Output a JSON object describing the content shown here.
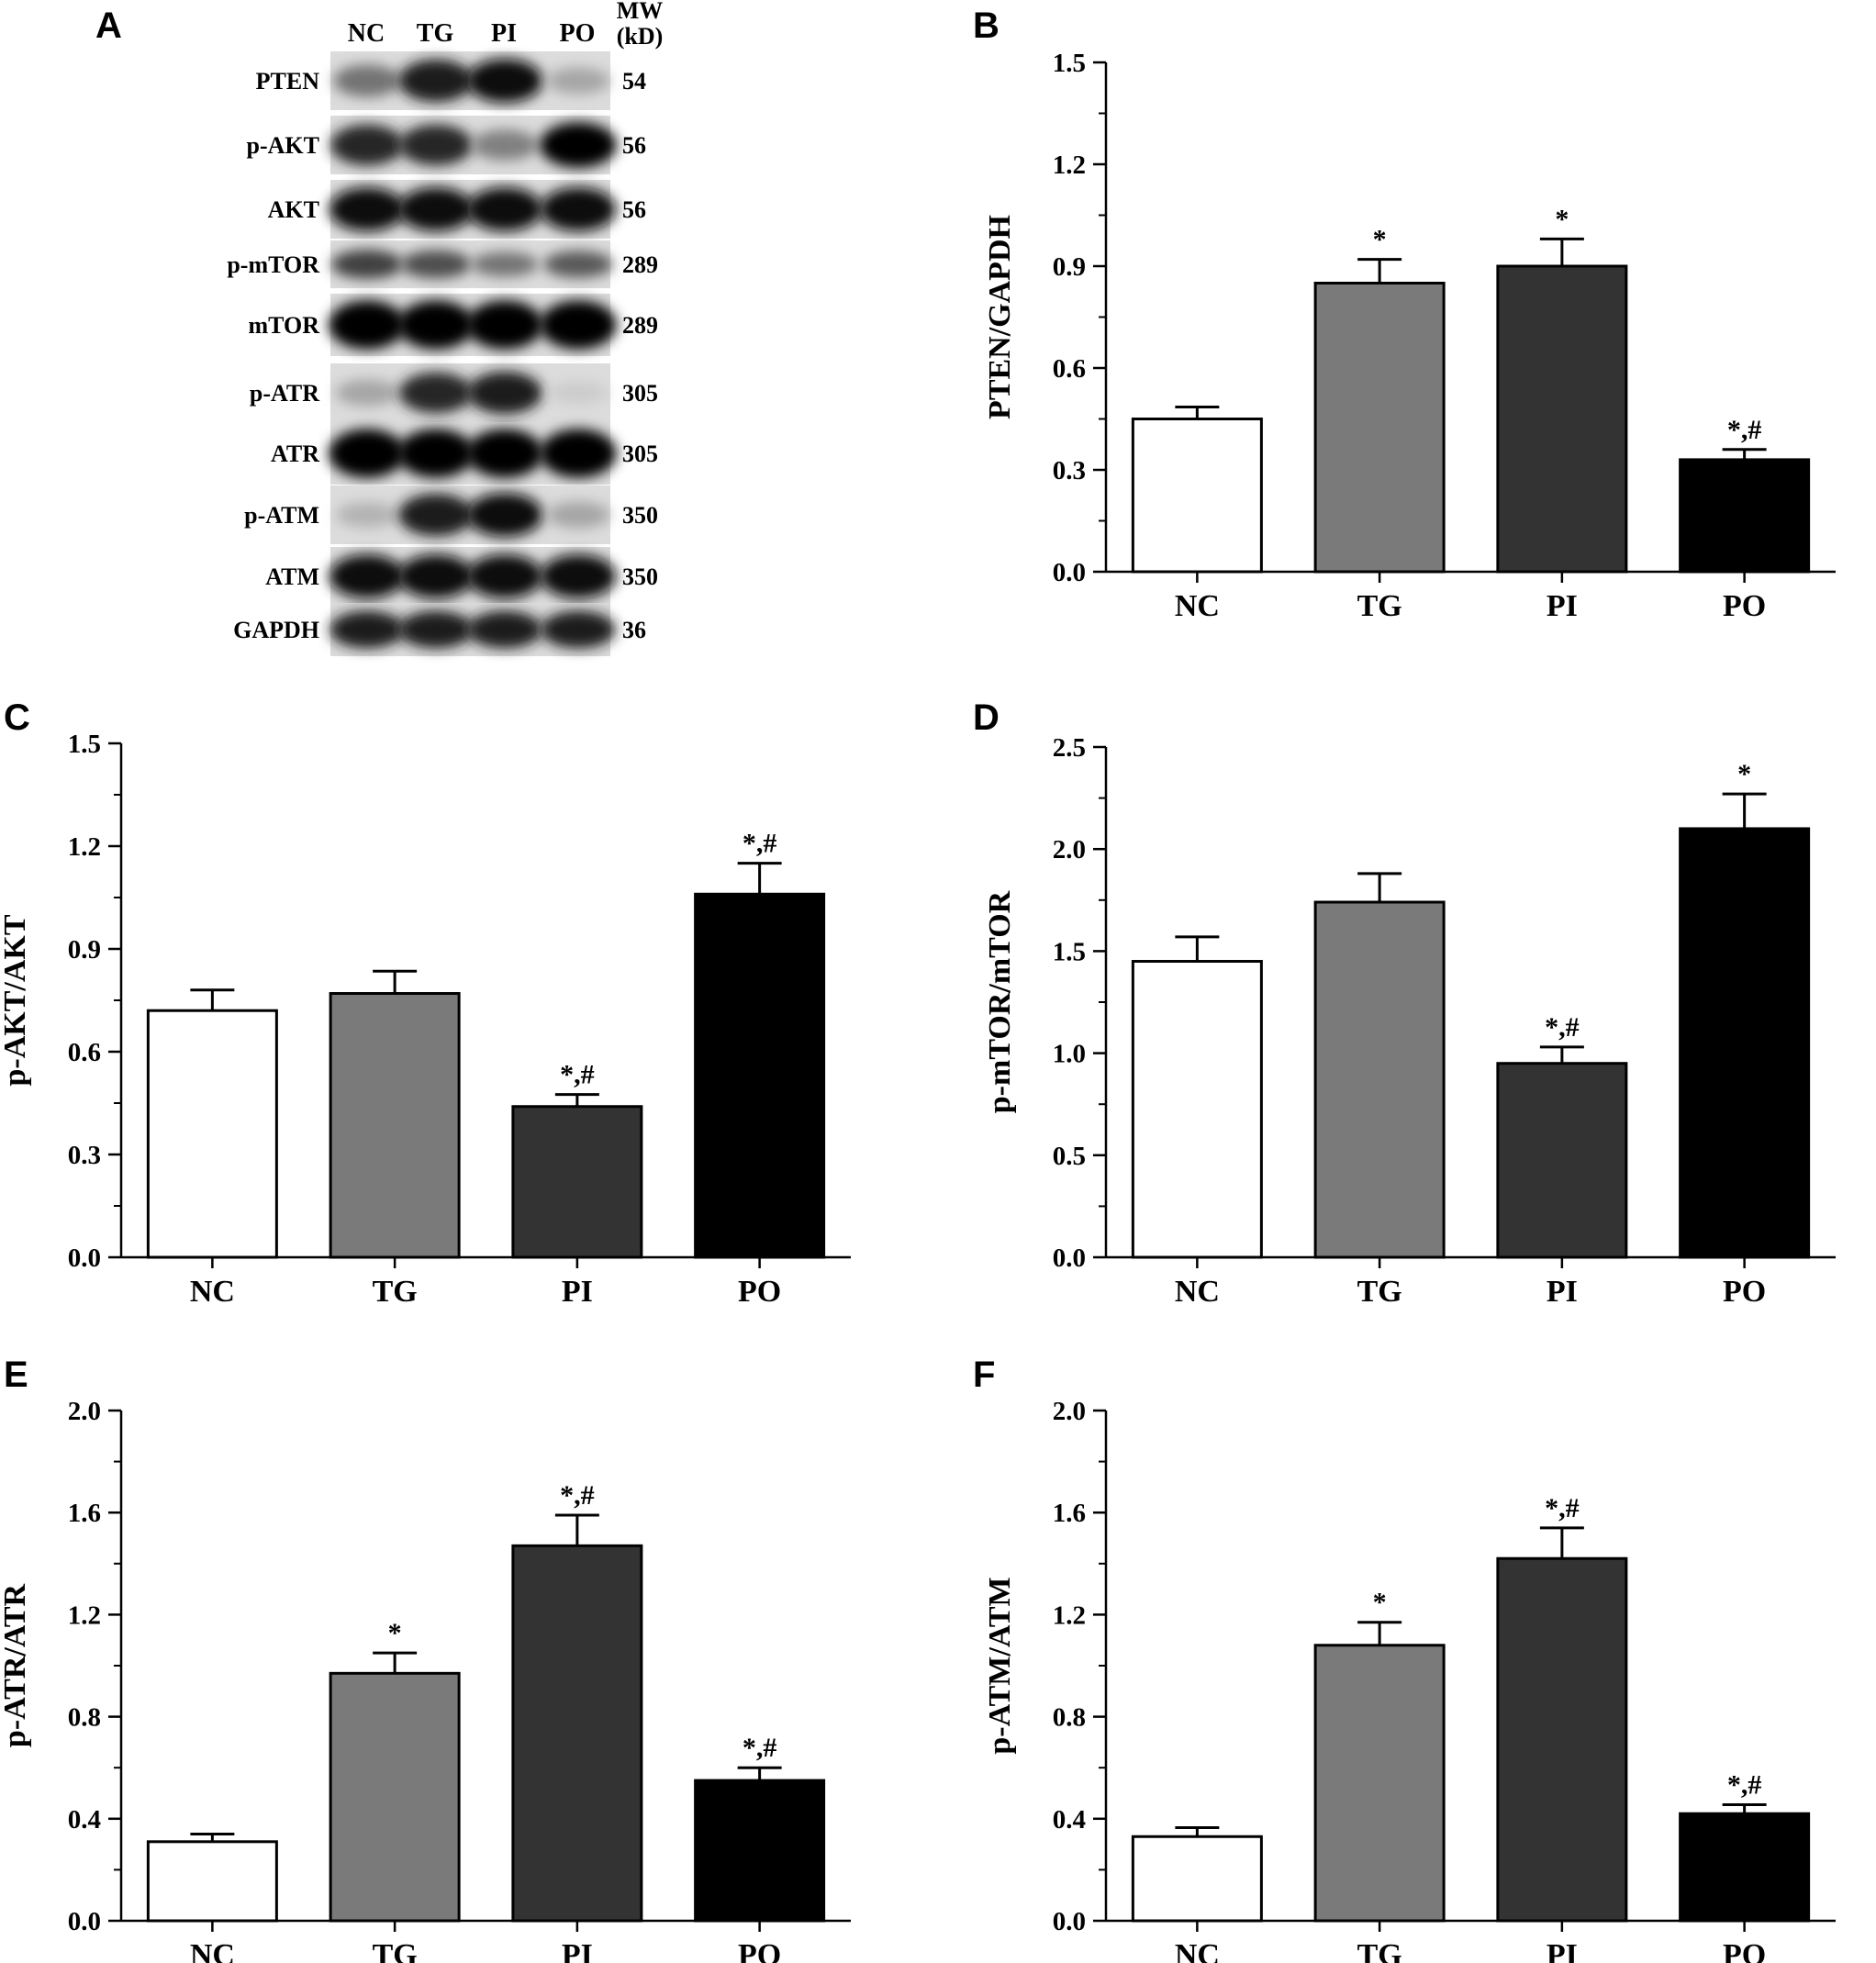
{
  "panels": {
    "a": {
      "letter": "A"
    },
    "b": {
      "letter": "B"
    },
    "c": {
      "letter": "C"
    },
    "d": {
      "letter": "D"
    },
    "e": {
      "letter": "E"
    },
    "f": {
      "letter": "F"
    }
  },
  "blot": {
    "lanes": [
      "NC",
      "TG",
      "PI",
      "PO"
    ],
    "mw_header": [
      "MW",
      "(kD)"
    ],
    "rows": [
      {
        "label": "PTEN",
        "mw": "54",
        "intensity": [
          0.55,
          0.9,
          0.95,
          0.35
        ]
      },
      {
        "label": "p-AKT",
        "mw": "56",
        "intensity": [
          0.85,
          0.85,
          0.5,
          1.0
        ]
      },
      {
        "label": "AKT",
        "mw": "56",
        "intensity": [
          0.95,
          0.95,
          0.95,
          0.95
        ]
      },
      {
        "label": "p-mTOR",
        "mw": "289",
        "intensity": [
          0.75,
          0.7,
          0.55,
          0.65
        ]
      },
      {
        "label": "mTOR",
        "mw": "289",
        "intensity": [
          1.0,
          1.0,
          1.0,
          1.0
        ]
      },
      {
        "label": "p-ATR",
        "mw": "305",
        "intensity": [
          0.35,
          0.85,
          0.9,
          0.2
        ]
      },
      {
        "label": "ATR",
        "mw": "305",
        "intensity": [
          1.0,
          1.0,
          1.0,
          1.0
        ]
      },
      {
        "label": "p-ATM",
        "mw": "350",
        "intensity": [
          0.3,
          0.9,
          0.95,
          0.35
        ]
      },
      {
        "label": "ATM",
        "mw": "350",
        "intensity": [
          0.95,
          0.95,
          0.95,
          0.95
        ]
      },
      {
        "label": "GAPDH",
        "mw": "36",
        "intensity": [
          0.9,
          0.9,
          0.9,
          0.9
        ]
      }
    ]
  },
  "colors": {
    "NC": "#ffffff",
    "TG": "#7a7a7a",
    "PI": "#333333",
    "PO": "#000000"
  },
  "chart_data": [
    {
      "id": "B",
      "type": "bar",
      "categories": [
        "NC",
        "TG",
        "PI",
        "PO"
      ],
      "values": [
        0.45,
        0.85,
        0.9,
        0.33
      ],
      "errors": [
        0.035,
        0.07,
        0.08,
        0.03
      ],
      "annotations": [
        "",
        "*",
        "*",
        "*,#"
      ],
      "ylabel": "PTEN/GAPDH",
      "ylim": [
        0,
        1.5
      ],
      "yticks": [
        "0.0",
        "0.3",
        "0.6",
        "0.9",
        "1.2",
        "1.5"
      ]
    },
    {
      "id": "C",
      "type": "bar",
      "categories": [
        "NC",
        "TG",
        "PI",
        "PO"
      ],
      "values": [
        0.72,
        0.77,
        0.44,
        1.06
      ],
      "errors": [
        0.06,
        0.065,
        0.035,
        0.09
      ],
      "annotations": [
        "",
        "",
        "*,#",
        "*,#"
      ],
      "ylabel": "p-AKT/AKT",
      "ylim": [
        0,
        1.5
      ],
      "yticks": [
        "0.0",
        "0.3",
        "0.6",
        "0.9",
        "1.2",
        "1.5"
      ]
    },
    {
      "id": "D",
      "type": "bar",
      "categories": [
        "NC",
        "TG",
        "PI",
        "PO"
      ],
      "values": [
        1.45,
        1.74,
        0.95,
        2.1
      ],
      "errors": [
        0.12,
        0.14,
        0.08,
        0.17
      ],
      "annotations": [
        "",
        "",
        "*,#",
        "*"
      ],
      "ylabel": "p-mTOR/mTOR",
      "ylim": [
        0,
        2.5
      ],
      "yticks": [
        "0.0",
        "0.5",
        "1.0",
        "1.5",
        "2.0",
        "2.5"
      ]
    },
    {
      "id": "E",
      "type": "bar",
      "categories": [
        "NC",
        "TG",
        "PI",
        "PO"
      ],
      "values": [
        0.31,
        0.97,
        1.47,
        0.55
      ],
      "errors": [
        0.03,
        0.08,
        0.12,
        0.05
      ],
      "annotations": [
        "",
        "*",
        "*,#",
        "*,#"
      ],
      "ylabel": "p-ATR/ATR",
      "ylim": [
        0,
        2.0
      ],
      "yticks": [
        "0.0",
        "0.4",
        "0.8",
        "1.2",
        "1.6",
        "2.0"
      ]
    },
    {
      "id": "F",
      "type": "bar",
      "categories": [
        "NC",
        "TG",
        "PI",
        "PO"
      ],
      "values": [
        0.33,
        1.08,
        1.42,
        0.42
      ],
      "errors": [
        0.035,
        0.09,
        0.12,
        0.035
      ],
      "annotations": [
        "",
        "*",
        "*,#",
        "*,#"
      ],
      "ylabel": "p-ATM/ATM",
      "ylim": [
        0,
        2.0
      ],
      "yticks": [
        "0.0",
        "0.4",
        "0.8",
        "1.2",
        "1.6",
        "2.0"
      ]
    }
  ]
}
